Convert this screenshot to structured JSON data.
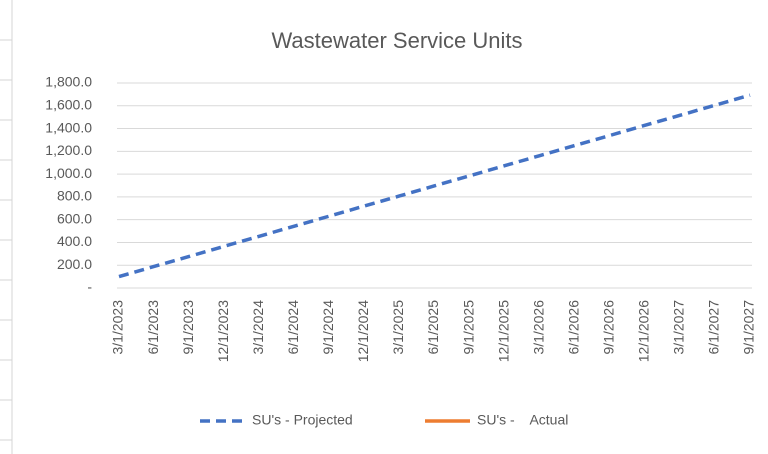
{
  "chart_data": {
    "type": "line",
    "title": "Wastewater Service Units",
    "categories": [
      "3/1/2023",
      "6/1/2023",
      "9/1/2023",
      "12/1/2023",
      "3/1/2024",
      "6/1/2024",
      "9/1/2024",
      "12/1/2024",
      "3/1/2025",
      "6/1/2025",
      "9/1/2025",
      "12/1/2025",
      "3/1/2026",
      "6/1/2026",
      "9/1/2026",
      "12/1/2026",
      "3/1/2027",
      "6/1/2027",
      "9/1/2027"
    ],
    "series": [
      {
        "name": "SU's - Projected",
        "color": "#4472c4",
        "dashed": true,
        "values": [
          100,
          189,
          277,
          366,
          454,
          543,
          631,
          720,
          808,
          897,
          985,
          1074,
          1162,
          1251,
          1339,
          1428,
          1516,
          1605,
          1693
        ]
      },
      {
        "name": "SU's -    Actual",
        "color": "#ed7d31",
        "dashed": false,
        "values": [
          null,
          null,
          null,
          null,
          null,
          null,
          null,
          null,
          null,
          null,
          null,
          null,
          null,
          null,
          null,
          null,
          null,
          null,
          null
        ]
      }
    ],
    "ylim": [
      0,
      1800
    ],
    "yticks": [
      {
        "value": 0,
        "label": "-"
      },
      {
        "value": 200,
        "label": "200.0"
      },
      {
        "value": 400,
        "label": "400.0"
      },
      {
        "value": 600,
        "label": "600.0"
      },
      {
        "value": 800,
        "label": "800.0"
      },
      {
        "value": 1000,
        "label": "1,000.0"
      },
      {
        "value": 1200,
        "label": "1,200.0"
      },
      {
        "value": 1400,
        "label": "1,400.0"
      },
      {
        "value": 1600,
        "label": "1,600.0"
      },
      {
        "value": 1800,
        "label": "1,800.0"
      }
    ],
    "grid": true,
    "legend": "bottom"
  }
}
